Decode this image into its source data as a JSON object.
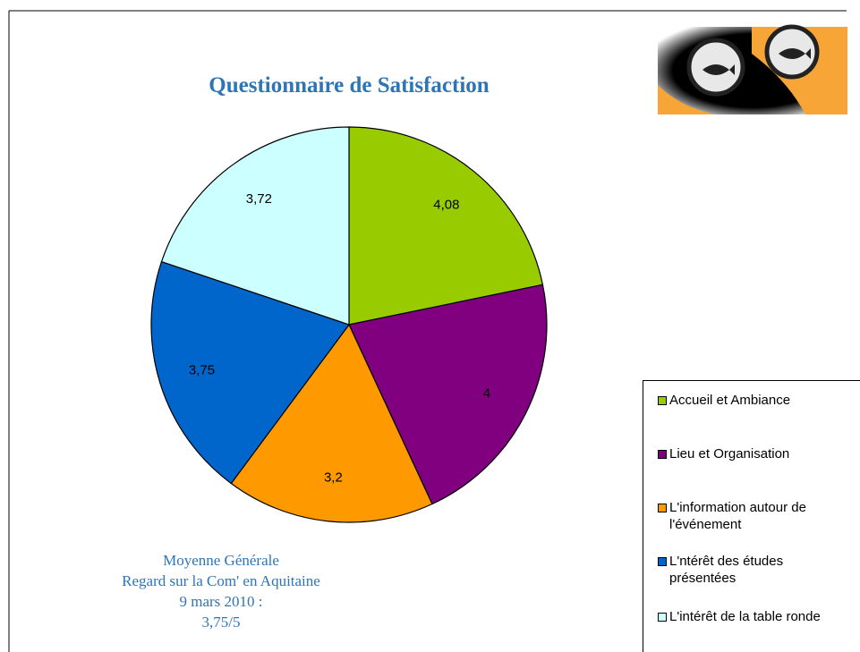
{
  "chart_data": {
    "type": "pie",
    "title": "Questionnaire de Satisfaction",
    "categories": [
      "Accueil et Ambiance",
      "Lieu et Organisation",
      "L'information autour de l'événement",
      "L'ntérêt des études présentées",
      "L'intérêt de la table ronde"
    ],
    "values": [
      4.08,
      4,
      3.2,
      3.75,
      3.72
    ],
    "value_labels": [
      "4,08",
      "4",
      "3,2",
      "3,75",
      "3,72"
    ],
    "colors": [
      "#99cc00",
      "#800080",
      "#ff9900",
      "#0066cc",
      "#ccffff"
    ],
    "notes": [
      "Moyenne Générale",
      "Regard sur la Com' en Aquitaine",
      "9 mars 2010 :",
      "3,75/5"
    ],
    "legend": "right"
  }
}
